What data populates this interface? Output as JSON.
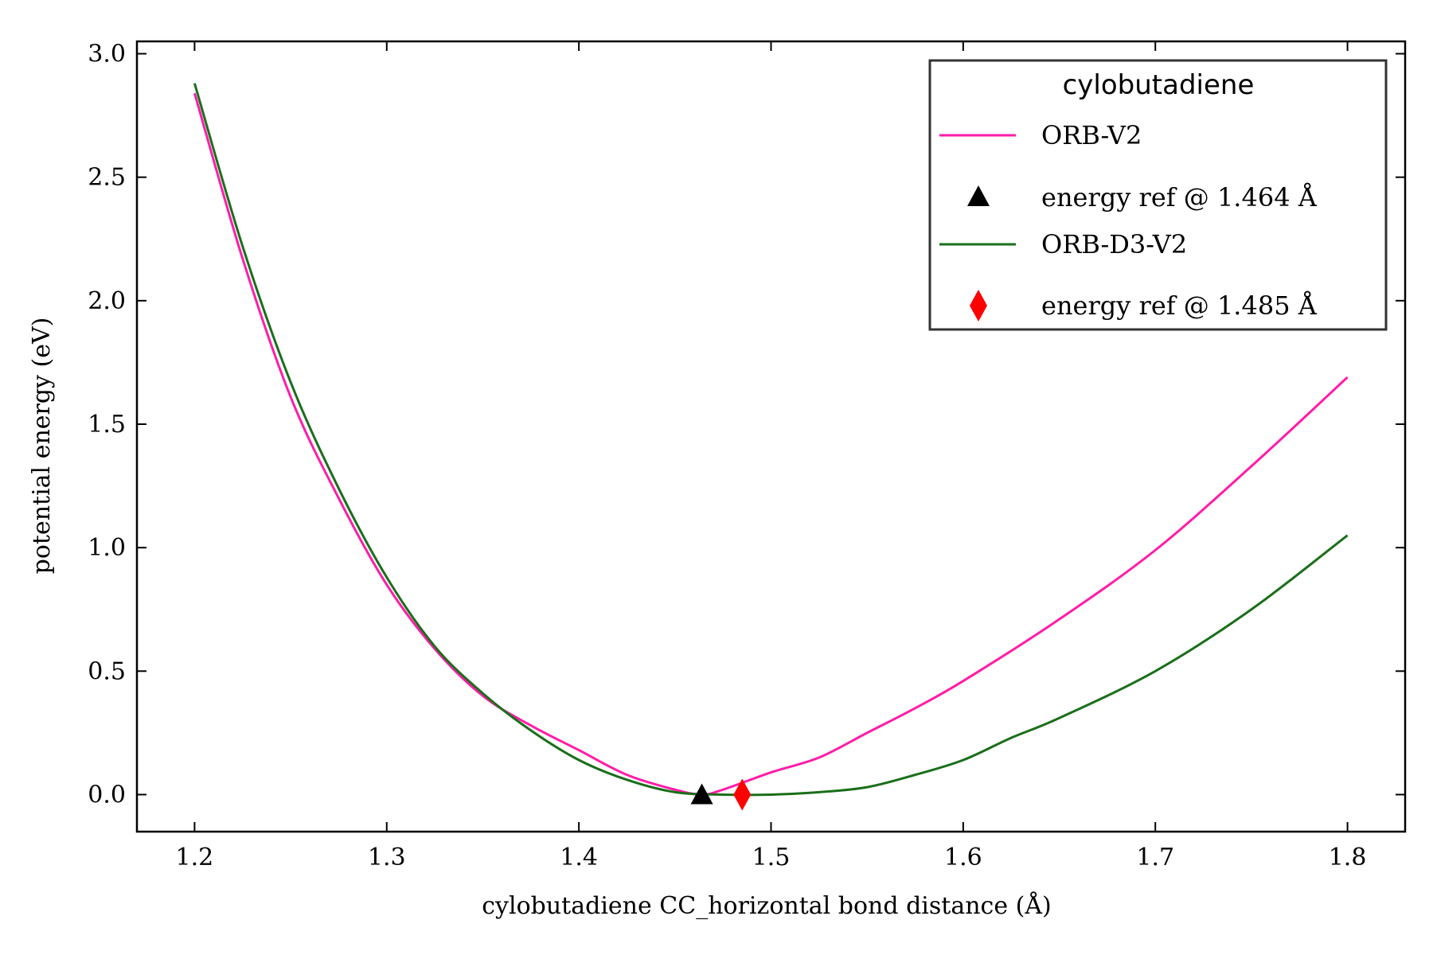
{
  "chart_data": {
    "type": "line",
    "xlabel": "cylobutadiene CC_horizontal bond distance (Å)",
    "ylabel": "potential energy (eV)",
    "xlim": [
      1.17,
      1.83
    ],
    "ylim": [
      -0.15,
      3.05
    ],
    "x_ticks": [
      "1.2",
      "1.3",
      "1.4",
      "1.5",
      "1.6",
      "1.7",
      "1.8"
    ],
    "x_tick_values": [
      1.2,
      1.3,
      1.4,
      1.5,
      1.6,
      1.7,
      1.8
    ],
    "y_ticks": [
      "0.0",
      "0.5",
      "1.0",
      "1.5",
      "2.0",
      "2.5",
      "3.0"
    ],
    "y_tick_values": [
      0.0,
      0.5,
      1.0,
      1.5,
      2.0,
      2.5,
      3.0
    ],
    "grid": false,
    "legend": {
      "title": "cylobutadiene",
      "position": "top-right",
      "entries": [
        {
          "label": "ORB-V2",
          "kind": "line",
          "color": "#ff1ca8"
        },
        {
          "label": "energy ref @ 1.464 Å",
          "kind": "triangle",
          "color": "#000000"
        },
        {
          "label": "ORB-D3-V2",
          "kind": "line",
          "color": "#1a6e1a"
        },
        {
          "label": "energy ref @ 1.485 Å",
          "kind": "diamond",
          "color": "#ff0000"
        }
      ]
    },
    "series": [
      {
        "name": "ORB-V2",
        "color": "#ff1ca8",
        "x": [
          1.2,
          1.225,
          1.25,
          1.275,
          1.3,
          1.325,
          1.35,
          1.375,
          1.4,
          1.425,
          1.45,
          1.464,
          1.475,
          1.5,
          1.525,
          1.55,
          1.575,
          1.6,
          1.65,
          1.7,
          1.75,
          1.8
        ],
        "y": [
          2.84,
          2.17,
          1.61,
          1.2,
          0.85,
          0.59,
          0.4,
          0.28,
          0.18,
          0.08,
          0.02,
          0.0,
          0.02,
          0.09,
          0.15,
          0.25,
          0.35,
          0.46,
          0.71,
          0.99,
          1.33,
          1.69
        ]
      },
      {
        "name": "ORB-D3-V2",
        "color": "#1a6e1a",
        "x": [
          1.2,
          1.225,
          1.25,
          1.275,
          1.3,
          1.325,
          1.35,
          1.375,
          1.4,
          1.425,
          1.45,
          1.475,
          1.5,
          1.525,
          1.55,
          1.575,
          1.6,
          1.625,
          1.65,
          1.7,
          1.75,
          1.8
        ],
        "y": [
          2.88,
          2.22,
          1.67,
          1.24,
          0.88,
          0.6,
          0.41,
          0.26,
          0.14,
          0.06,
          0.01,
          0.0,
          0.0,
          0.01,
          0.03,
          0.08,
          0.14,
          0.23,
          0.31,
          0.5,
          0.75,
          1.05
        ]
      }
    ],
    "markers": [
      {
        "label": "energy ref @ 1.464 Å",
        "shape": "triangle",
        "color": "#000000",
        "x": 1.464,
        "y": 0.0
      },
      {
        "label": "energy ref @ 1.485 Å",
        "shape": "diamond",
        "color": "#ff0000",
        "x": 1.485,
        "y": 0.0
      }
    ]
  }
}
